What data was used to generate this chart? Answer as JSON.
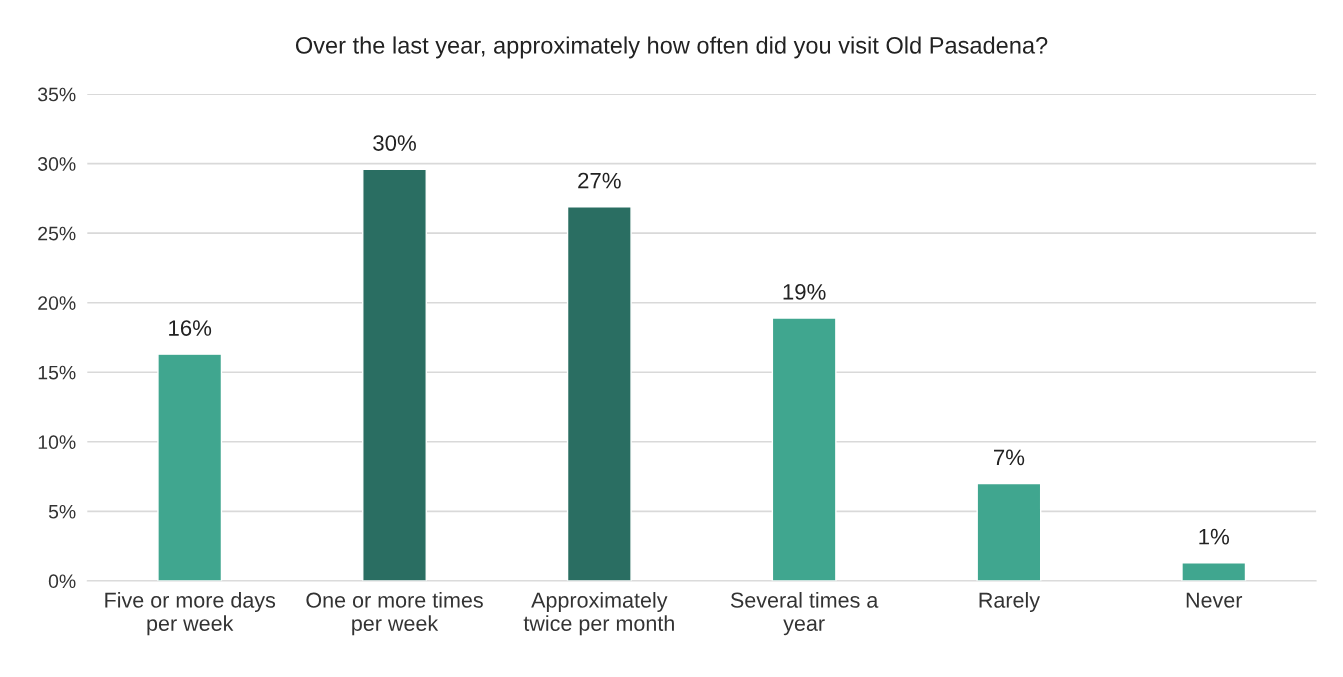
{
  "chart_data": {
    "type": "bar",
    "title": "Over the last year, approximately how often did you visit Old Pasadena?",
    "categories": [
      "Five or more days\nper week",
      "One or more times\nper week",
      "Approximately\ntwice per month",
      "Several times a\nyear",
      "Rarely",
      "Never"
    ],
    "values": [
      16.3,
      29.6,
      26.9,
      18.9,
      7.0,
      1.3
    ],
    "colors": [
      "#40a68f",
      "#2a6e62",
      "#2a6e62",
      "#40a68f",
      "#40a68f",
      "#40a68f"
    ],
    "value_labels": [
      "16%",
      "30%",
      "27%",
      "19%",
      "7%",
      "1%"
    ],
    "ylim": [
      0,
      35
    ],
    "yticks": [
      {
        "value": 0,
        "label": "0%"
      },
      {
        "value": 5,
        "label": "5%"
      },
      {
        "value": 10,
        "label": "10%"
      },
      {
        "value": 15,
        "label": "15%"
      },
      {
        "value": 20,
        "label": "20%"
      },
      {
        "value": 25,
        "label": "25%"
      },
      {
        "value": 30,
        "label": "30%"
      },
      {
        "value": 35,
        "label": "35%"
      }
    ],
    "grid": "y",
    "legend": false
  }
}
